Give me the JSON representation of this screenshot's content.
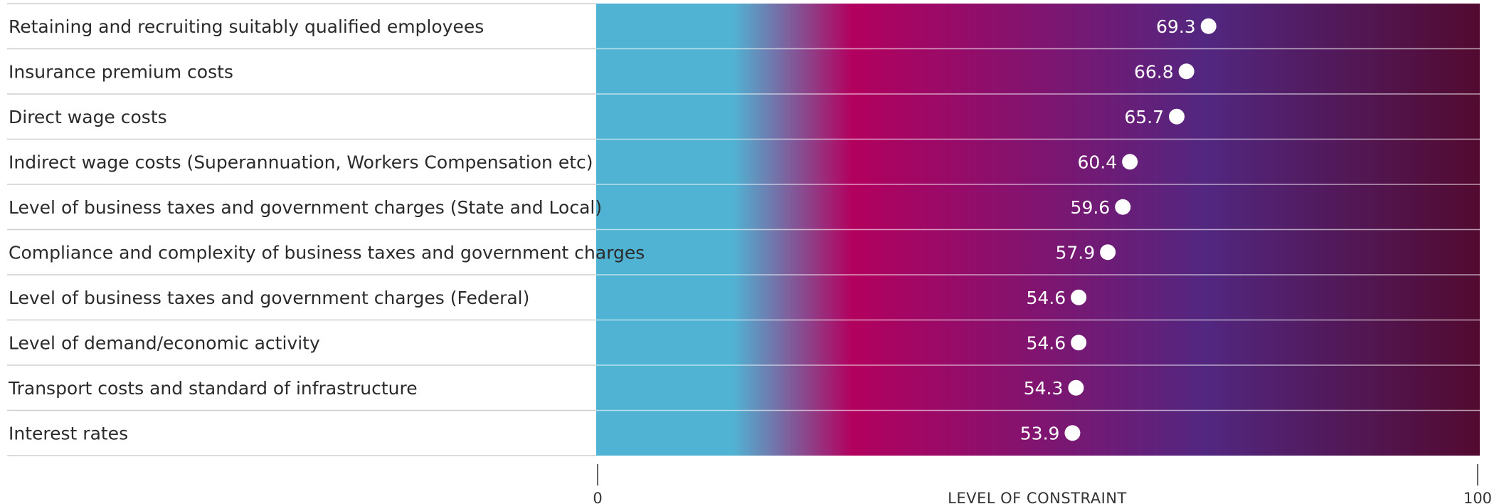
{
  "chart_data": {
    "type": "dot",
    "categories": [
      "Retaining and recruiting suitably qualified employees",
      "Insurance premium costs",
      "Direct wage costs",
      "Indirect wage costs (Superannuation, Workers Compensation etc)",
      "Level of business taxes and government charges (State and Local)",
      "Compliance and complexity of business taxes and government charges",
      "Level of business taxes and government charges (Federal)",
      "Level of demand/economic activity",
      "Transport costs and standard of infrastructure",
      "Interest rates"
    ],
    "values": [
      69.3,
      66.8,
      65.7,
      60.4,
      59.6,
      57.9,
      54.6,
      54.6,
      54.3,
      53.9
    ],
    "value_labels": [
      "69.3",
      "66.8",
      "65.7",
      "60.4",
      "59.6",
      "57.9",
      "54.6",
      "54.6",
      "54.3",
      "53.9"
    ],
    "xlabel": "LEVEL OF CONSTRAINT",
    "xlim": [
      0,
      100
    ],
    "x_tick_labels": [
      "0",
      "100"
    ],
    "gradient_colors": [
      "#50b3d3",
      "#50b3d3",
      "#b3005e",
      "#522780",
      "#520a30"
    ],
    "marker_color": "#ffffff",
    "grid": false
  }
}
